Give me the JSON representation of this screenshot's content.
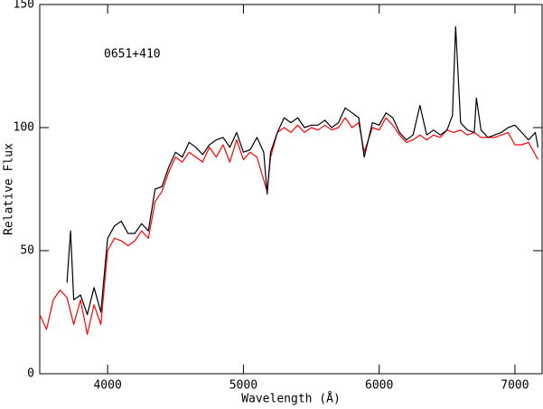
{
  "chart_data": {
    "type": "line",
    "annotation": "0651+410",
    "xlabel": "Wavelength (Å)",
    "ylabel": "Relative Flux",
    "xlim": [
      3500,
      7200
    ],
    "ylim": [
      0,
      150
    ],
    "xticks": [
      4000,
      5000,
      6000,
      7000
    ],
    "yticks": [
      0,
      50,
      100,
      150
    ],
    "series": [
      {
        "color": "#000000",
        "x": [
          3700,
          3727,
          3750,
          3800,
          3850,
          3900,
          3950,
          4000,
          4050,
          4100,
          4150,
          4200,
          4250,
          4300,
          4350,
          4400,
          4450,
          4500,
          4550,
          4600,
          4650,
          4700,
          4750,
          4800,
          4850,
          4900,
          4950,
          5000,
          5050,
          5100,
          5150,
          5175,
          5200,
          5250,
          5300,
          5350,
          5400,
          5450,
          5500,
          5550,
          5600,
          5650,
          5700,
          5750,
          5800,
          5850,
          5890,
          5950,
          6000,
          6050,
          6100,
          6150,
          6200,
          6250,
          6300,
          6350,
          6400,
          6450,
          6500,
          6540,
          6563,
          6600,
          6650,
          6700,
          6716,
          6750,
          6800,
          6850,
          6900,
          6950,
          7000,
          7050,
          7100,
          7150,
          7170
        ],
        "values": [
          37,
          58,
          30,
          32,
          24,
          35,
          25,
          55,
          60,
          62,
          57,
          57,
          61,
          58,
          75,
          76,
          84,
          90,
          88,
          94,
          92,
          89,
          93,
          95,
          96,
          92,
          98,
          90,
          91,
          96,
          90,
          73,
          90,
          98,
          104,
          102,
          104,
          100,
          101,
          101,
          103,
          100,
          102,
          108,
          106,
          104,
          88,
          102,
          101,
          106,
          104,
          98,
          95,
          97,
          109,
          97,
          99,
          97,
          99,
          105,
          141,
          102,
          99,
          98,
          112,
          99,
          96,
          97,
          98,
          100,
          101,
          98,
          95,
          98,
          92
        ]
      },
      {
        "color": "#ff0000",
        "x": [
          3500,
          3550,
          3600,
          3650,
          3700,
          3750,
          3800,
          3850,
          3900,
          3950,
          4000,
          4050,
          4100,
          4150,
          4200,
          4250,
          4300,
          4350,
          4400,
          4450,
          4500,
          4550,
          4600,
          4650,
          4700,
          4750,
          4800,
          4850,
          4900,
          4950,
          5000,
          5050,
          5100,
          5175,
          5200,
          5250,
          5300,
          5350,
          5400,
          5450,
          5500,
          5550,
          5600,
          5650,
          5700,
          5750,
          5800,
          5850,
          5890,
          5950,
          6000,
          6050,
          6100,
          6150,
          6200,
          6250,
          6300,
          6350,
          6400,
          6450,
          6500,
          6550,
          6600,
          6650,
          6700,
          6750,
          6800,
          6850,
          6900,
          6950,
          7000,
          7050,
          7100,
          7150,
          7170
        ],
        "values": [
          24,
          18,
          30,
          34,
          31,
          20,
          30,
          16,
          28,
          20,
          50,
          55,
          54,
          52,
          54,
          58,
          55,
          70,
          74,
          82,
          88,
          86,
          90,
          88,
          86,
          92,
          88,
          93,
          86,
          95,
          87,
          90,
          88,
          74,
          88,
          98,
          100,
          98,
          101,
          98,
          100,
          99,
          101,
          99,
          100,
          104,
          100,
          102,
          90,
          100,
          99,
          104,
          101,
          97,
          94,
          95,
          97,
          95,
          97,
          96,
          99,
          98,
          99,
          97,
          98,
          96,
          96,
          96,
          97,
          98,
          93,
          93,
          94,
          89,
          87
        ]
      }
    ]
  }
}
